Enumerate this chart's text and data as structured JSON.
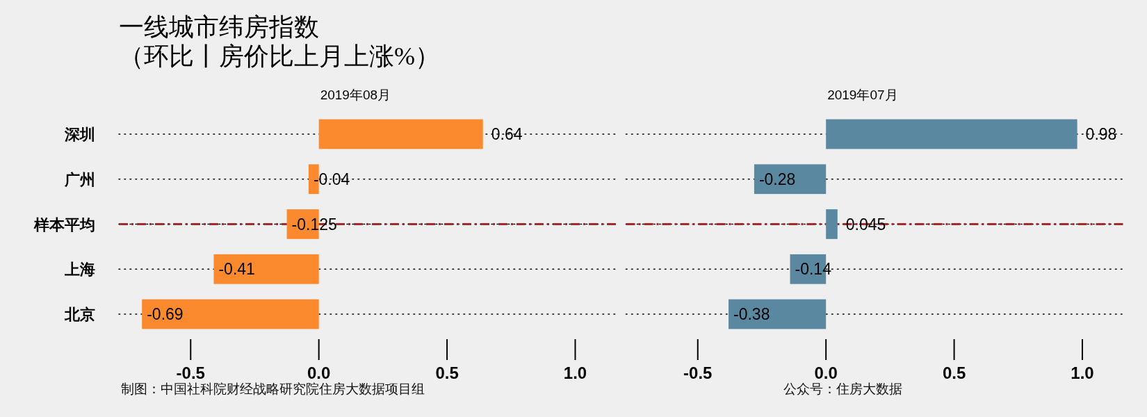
{
  "chart_data": [
    {
      "type": "bar",
      "orientation": "horizontal",
      "title": "一线城市纬房指数（环比丨房价比上月上涨%）",
      "subtitle": "2019年08月",
      "categories": [
        "深圳",
        "广州",
        "样本平均",
        "上海",
        "北京"
      ],
      "values": [
        0.64,
        -0.04,
        -0.125,
        -0.41,
        -0.69
      ],
      "color": "#fb8a2e",
      "xlim": [
        -0.78,
        1.16
      ],
      "xticks": [
        {
          "value": -0.5,
          "label": "-0.5"
        },
        {
          "value": 0,
          "label": "0.0"
        },
        {
          "value": 0.5,
          "label": "0.5"
        },
        {
          "value": 1,
          "label": "1.0"
        }
      ],
      "grid": "y",
      "ref_lines": [
        {
          "axis": "y",
          "value": "样本平均",
          "color": "#a52a2a",
          "line_style": "dashed"
        }
      ],
      "data_labels": true,
      "annotations": [
        "制图：中国社科院财经战略研究院住房大数据项目组"
      ]
    },
    {
      "type": "bar",
      "orientation": "horizontal",
      "subtitle": "2019年07月",
      "categories": [
        "深圳",
        "广州",
        "样本平均",
        "上海",
        "北京"
      ],
      "values": [
        0.98,
        -0.28,
        0.045,
        -0.14,
        -0.38
      ],
      "color": "#5a88a0",
      "xlim": [
        -0.78,
        1.16
      ],
      "xticks": [
        {
          "value": -0.5,
          "label": "-0.5"
        },
        {
          "value": 0,
          "label": "0.0"
        },
        {
          "value": 0.5,
          "label": "0.5"
        },
        {
          "value": 1,
          "label": "1.0"
        }
      ],
      "grid": "y",
      "ref_lines": [
        {
          "axis": "y",
          "value": "样本平均",
          "color": "#a52a2a",
          "line_style": "dashed"
        }
      ],
      "data_labels": true,
      "tick_labels": "x",
      "annotations": [
        "公众号：住房大数据"
      ]
    }
  ]
}
